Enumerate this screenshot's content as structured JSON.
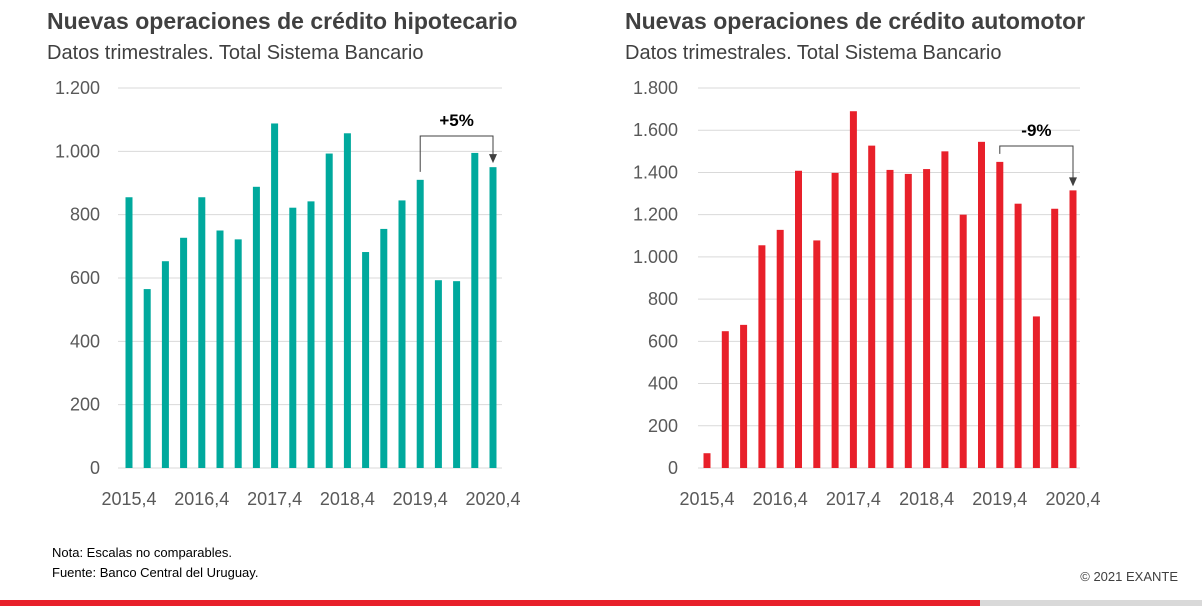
{
  "chart_data": [
    {
      "type": "bar",
      "title": "Nuevas operaciones de crédito hipotecario",
      "subtitle": "Datos trimestrales. Total Sistema Bancario",
      "x_tick_labels": [
        "2015,4",
        "2016,4",
        "2017,4",
        "2018,4",
        "2019,4",
        "2020,4"
      ],
      "values": [
        855,
        565,
        653,
        727,
        855,
        750,
        722,
        888,
        1088,
        822,
        842,
        993,
        1057,
        682,
        755,
        845,
        910,
        593,
        590,
        995,
        950
      ],
      "ylim": [
        0,
        1200
      ],
      "yticks": [
        0,
        200,
        400,
        600,
        800,
        1000,
        1200
      ],
      "ytick_labels": [
        "0",
        "200",
        "400",
        "600",
        "800",
        "1.000",
        "1.200"
      ],
      "bar_color": "#00a99d",
      "grid": true,
      "annotation": {
        "text": "+5%",
        "from_index": 16,
        "to_index": 20
      }
    },
    {
      "type": "bar",
      "title": "Nuevas operaciones de crédito automotor",
      "subtitle": "Datos trimestrales. Total Sistema Bancario",
      "x_tick_labels": [
        "2015,4",
        "2016,4",
        "2017,4",
        "2018,4",
        "2019,4",
        "2020,4"
      ],
      "values": [
        70,
        648,
        678,
        1055,
        1128,
        1408,
        1078,
        1398,
        1690,
        1527,
        1412,
        1393,
        1416,
        1500,
        1200,
        1545,
        1450,
        1252,
        718,
        1228,
        1315
      ],
      "ylim": [
        0,
        1800
      ],
      "yticks": [
        0,
        200,
        400,
        600,
        800,
        1000,
        1200,
        1400,
        1600,
        1800
      ],
      "ytick_labels": [
        "0",
        "200",
        "400",
        "600",
        "800",
        "1.000",
        "1.200",
        "1.400",
        "1.600",
        "1.800"
      ],
      "bar_color": "#e8202a",
      "grid": true,
      "annotation": {
        "text": "-9%",
        "from_index": 16,
        "to_index": 20
      }
    }
  ],
  "notes": {
    "line1": "Nota: Escalas no comparables.",
    "line2": "Fuente: Banco Central del Uruguay."
  },
  "copyright": "© 2021 EXANTE",
  "colors": {
    "accent_red": "#e8202a",
    "teal": "#00a99d",
    "footer_gray": "#d9d9d9"
  }
}
